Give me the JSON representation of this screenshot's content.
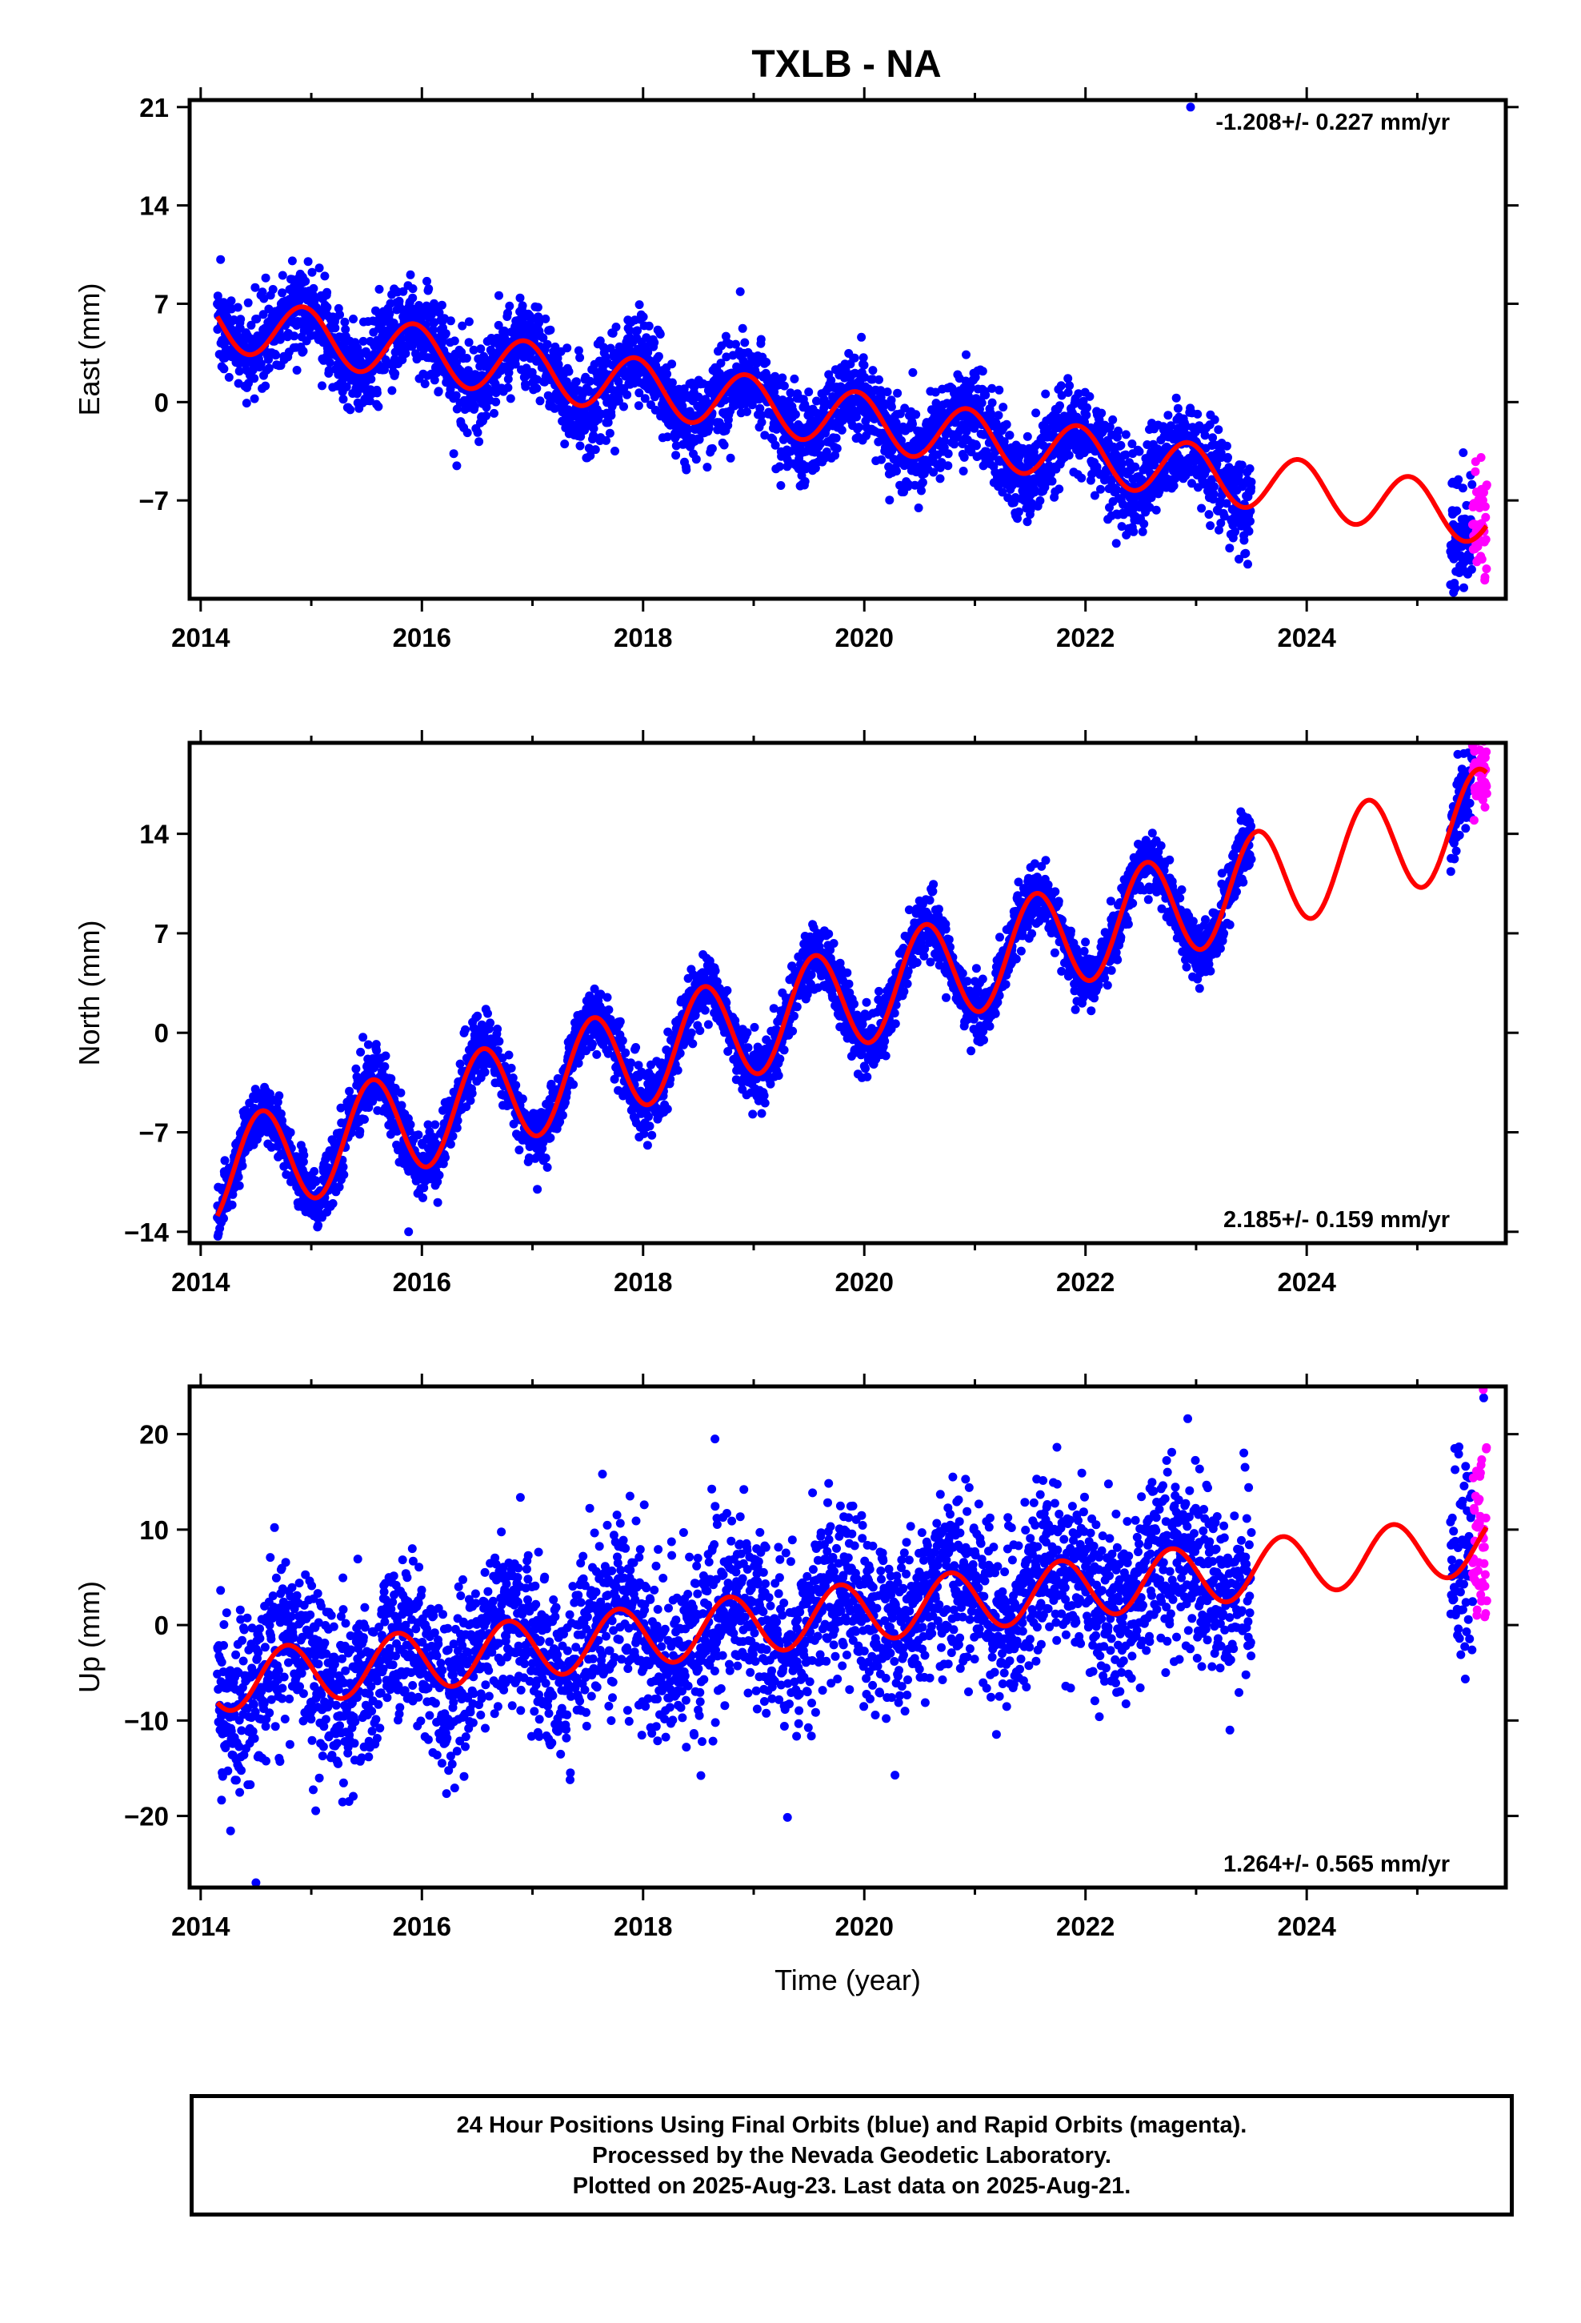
{
  "title": "TXLB - NA",
  "colors": {
    "final_orbits": "#0000ff",
    "rapid_orbits": "#ff00ff",
    "model": "#ff0000",
    "frame": "#000000"
  },
  "x_axis": {
    "label": "Time (year)",
    "range": [
      2013.9,
      2025.8
    ],
    "ticks": [
      2014,
      2016,
      2018,
      2020,
      2022,
      2024
    ],
    "tick_labels": [
      "2014",
      "2016",
      "2018",
      "2020",
      "2022",
      "2024"
    ]
  },
  "chart_data": [
    {
      "type": "scatter",
      "id": "east",
      "ylabel": "East (mm)",
      "ylim": [
        -14,
        21.5
      ],
      "yticks": [
        21,
        14,
        7,
        0,
        -7
      ],
      "ytick_labels": [
        "21",
        "14",
        "7",
        "0",
        "−7"
      ],
      "rate_text": "-1.208+/- 0.227 mm/yr",
      "rate_position": "top-right",
      "trend": {
        "slope_mm_per_yr": -1.208,
        "offset_at_2014_mm": 5.9,
        "annual_amplitude_mm": 2.0,
        "annual_peak_fraction": 0.93
      },
      "final_series": {
        "start": 2014.15,
        "end": 2023.5,
        "scatter_mm": 1.6
      },
      "rapid_series": {
        "start": 2025.5,
        "end": 2025.63,
        "scatter_mm": 2.6
      },
      "outliers": [
        {
          "x": 2022.95,
          "y": 21.0
        },
        {
          "x": 2025.3,
          "y": -13.0
        }
      ]
    },
    {
      "type": "scatter",
      "id": "north",
      "ylabel": "North (mm)",
      "ylim": [
        -14.8,
        20.4
      ],
      "yticks": [
        14,
        7,
        0,
        -7,
        -14
      ],
      "ytick_labels": [
        "14",
        "7",
        "0",
        "−7",
        "−14"
      ],
      "rate_text": "2.185+/- 0.159 mm/yr",
      "rate_position": "bottom-right",
      "trend": {
        "slope_mm_per_yr": 2.185,
        "offset_at_2014_mm": -10.3,
        "annual_amplitude_mm": 3.6,
        "annual_peak_fraction": 0.55
      },
      "final_series": {
        "start": 2014.15,
        "end": 2023.5,
        "scatter_mm": 1.1
      },
      "rapid_series": {
        "start": 2025.5,
        "end": 2025.63,
        "scatter_mm": 2.0
      },
      "outliers": [
        {
          "x": 2015.88,
          "y": -14.0
        },
        {
          "x": 2025.6,
          "y": 19.5
        }
      ]
    },
    {
      "type": "scatter",
      "id": "up",
      "ylabel": "Up (mm)",
      "ylim": [
        -27.5,
        25.0
      ],
      "yticks": [
        20,
        10,
        0,
        -10,
        -20
      ],
      "ytick_labels": [
        "20",
        "10",
        "0",
        "−10",
        "−20"
      ],
      "rate_text": "1.264+/- 0.565 mm/yr",
      "rate_position": "bottom-right",
      "trend": {
        "slope_mm_per_yr": 1.264,
        "offset_at_2014_mm": -6.2,
        "annual_amplitude_mm": 3.1,
        "annual_peak_fraction": 0.78
      },
      "final_series": {
        "start": 2014.15,
        "end": 2023.5,
        "scatter_mm": 4.5
      },
      "rapid_series": {
        "start": 2025.5,
        "end": 2025.63,
        "scatter_mm": 6.0
      },
      "outliers": [
        {
          "x": 2014.5,
          "y": -27.0
        },
        {
          "x": 2018.65,
          "y": 19.5
        },
        {
          "x": 2025.6,
          "y": 23.8
        }
      ]
    }
  ],
  "footer": {
    "line1": "24 Hour Positions Using Final Orbits (blue) and Rapid Orbits (magenta).",
    "line2": "Processed by the Nevada Geodetic Laboratory.",
    "line3": "Plotted on 2025-Aug-23. Last data on 2025-Aug-21."
  }
}
